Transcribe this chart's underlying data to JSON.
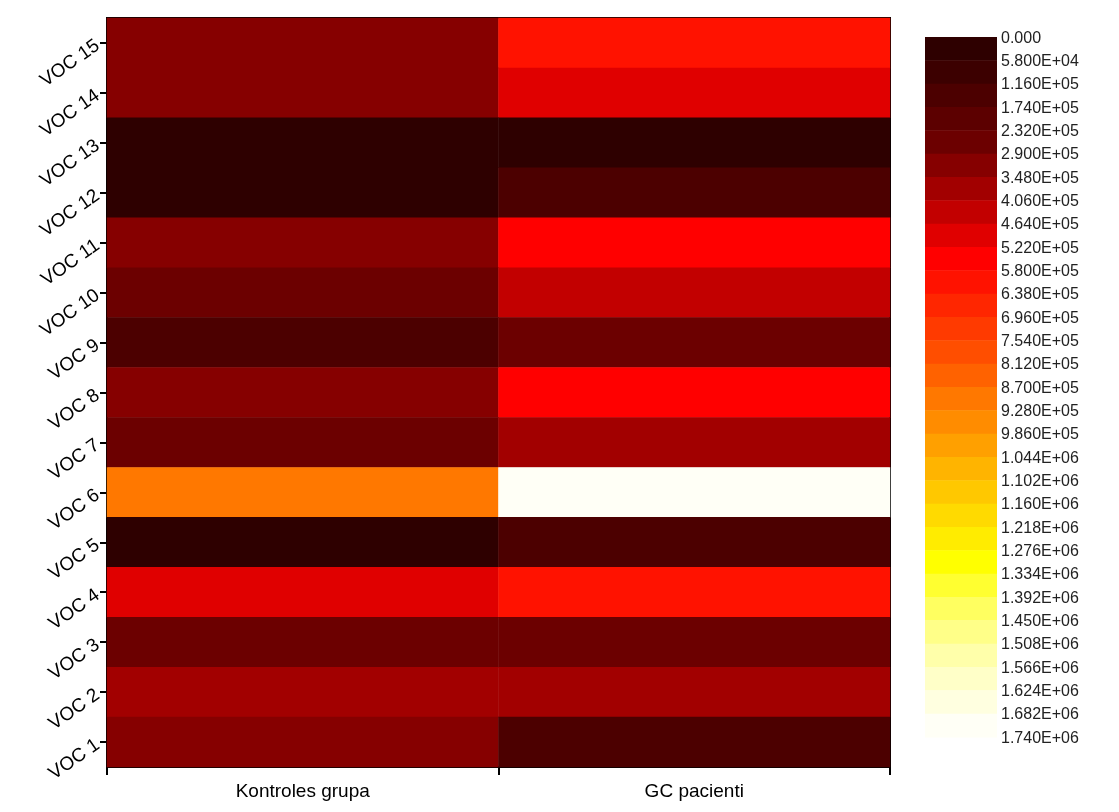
{
  "chart_data": {
    "type": "heatmap",
    "categories": [
      "Kontroles grupa",
      "GC pacienti"
    ],
    "y_categories": [
      "VOC 15",
      "VOC 14",
      "VOC 13",
      "VOC 12",
      "VOC 11",
      "VOC 10",
      "VOC 9",
      "VOC 8",
      "VOC 7",
      "VOC 6",
      "VOC 5",
      "VOC 4",
      "VOC 3",
      "VOC 2",
      "VOC 1"
    ],
    "cells": [
      [
        319000,
        609000
      ],
      [
        319000,
        493000
      ],
      [
        29000,
        29000
      ],
      [
        29000,
        145000
      ],
      [
        319000,
        551000
      ],
      [
        261000,
        435000
      ],
      [
        145000,
        261000
      ],
      [
        319000,
        551000
      ],
      [
        261000,
        377000
      ],
      [
        899000,
        1711000
      ],
      [
        29000,
        145000
      ],
      [
        493000,
        609000
      ],
      [
        261000,
        261000
      ],
      [
        377000,
        377000
      ],
      [
        319000,
        145000
      ]
    ],
    "clim": [
      0,
      1740000
    ],
    "colors": [
      "#2e0000",
      "#3c0000",
      "#4c0000",
      "#5c0000",
      "#6c0000",
      "#860000",
      "#a20000",
      "#c20000",
      "#e00000",
      "#ff0000",
      "#ff1200",
      "#ff2600",
      "#ff3a00",
      "#ff4e00",
      "#ff6200",
      "#ff7800",
      "#ff8c00",
      "#ffa000",
      "#ffb400",
      "#ffc800",
      "#ffda00",
      "#ffec00",
      "#ffff00",
      "#ffff30",
      "#ffff60",
      "#ffff88",
      "#ffffaa",
      "#ffffc8",
      "#ffffe0",
      "#fffff6"
    ],
    "cticks": [
      {
        "value": 0,
        "label": "0.000"
      },
      {
        "value": 58000,
        "label": "5.800E+04"
      },
      {
        "value": 116000,
        "label": "1.160E+05"
      },
      {
        "value": 174000,
        "label": "1.740E+05"
      },
      {
        "value": 232000,
        "label": "2.320E+05"
      },
      {
        "value": 290000,
        "label": "2.900E+05"
      },
      {
        "value": 348000,
        "label": "3.480E+05"
      },
      {
        "value": 406000,
        "label": "4.060E+05"
      },
      {
        "value": 464000,
        "label": "4.640E+05"
      },
      {
        "value": 522000,
        "label": "5.220E+05"
      },
      {
        "value": 580000,
        "label": "5.800E+05"
      },
      {
        "value": 638000,
        "label": "6.380E+05"
      },
      {
        "value": 696000,
        "label": "6.960E+05"
      },
      {
        "value": 754000,
        "label": "7.540E+05"
      },
      {
        "value": 812000,
        "label": "8.120E+05"
      },
      {
        "value": 870000,
        "label": "8.700E+05"
      },
      {
        "value": 928000,
        "label": "9.280E+05"
      },
      {
        "value": 986000,
        "label": "9.860E+05"
      },
      {
        "value": 1044000,
        "label": "1.044E+06"
      },
      {
        "value": 1102000,
        "label": "1.102E+06"
      },
      {
        "value": 1160000,
        "label": "1.160E+06"
      },
      {
        "value": 1218000,
        "label": "1.218E+06"
      },
      {
        "value": 1276000,
        "label": "1.276E+06"
      },
      {
        "value": 1334000,
        "label": "1.334E+06"
      },
      {
        "value": 1392000,
        "label": "1.392E+06"
      },
      {
        "value": 1450000,
        "label": "1.450E+06"
      },
      {
        "value": 1508000,
        "label": "1.508E+06"
      },
      {
        "value": 1566000,
        "label": "1.566E+06"
      },
      {
        "value": 1624000,
        "label": "1.624E+06"
      },
      {
        "value": 1682000,
        "label": "1.682E+06"
      },
      {
        "value": 1740000,
        "label": "1.740E+06"
      }
    ]
  }
}
